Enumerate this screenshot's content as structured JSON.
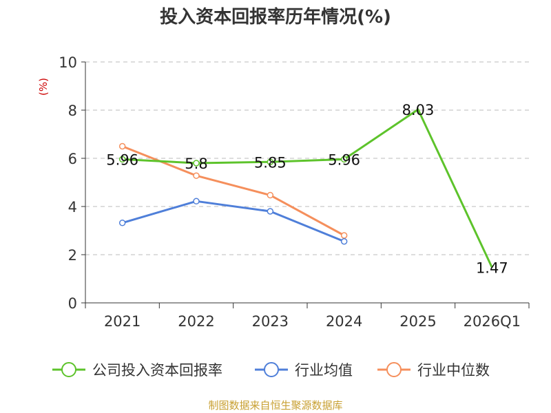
{
  "chart_data": {
    "type": "line",
    "title": "投入资本回报率历年情况(%)",
    "ylabel": "(%)",
    "xlabel": "",
    "categories": [
      "2021",
      "2022",
      "2023",
      "2024",
      "2025",
      "2026Q1"
    ],
    "ylim": [
      0,
      10
    ],
    "yticks": [
      "0",
      "2",
      "4",
      "6",
      "8",
      "10"
    ],
    "grid": true,
    "legend_position": "bottom",
    "series": [
      {
        "name": "公司投入资本回报率",
        "color": "#5dc32b",
        "values": [
          5.96,
          5.8,
          5.85,
          5.96,
          8.03,
          1.47
        ],
        "labels": [
          "5.96",
          "5.8",
          "5.85",
          "5.96",
          "8.03",
          "1.47"
        ]
      },
      {
        "name": "行业均值",
        "color": "#4f7fd9",
        "values": [
          3.32,
          4.22,
          3.8,
          2.55,
          null,
          null
        ]
      },
      {
        "name": "行业中位数",
        "color": "#f58f5c",
        "values": [
          6.5,
          5.28,
          4.47,
          2.8,
          null,
          null
        ]
      }
    ]
  },
  "source": "制图数据来自恒生聚源数据库"
}
